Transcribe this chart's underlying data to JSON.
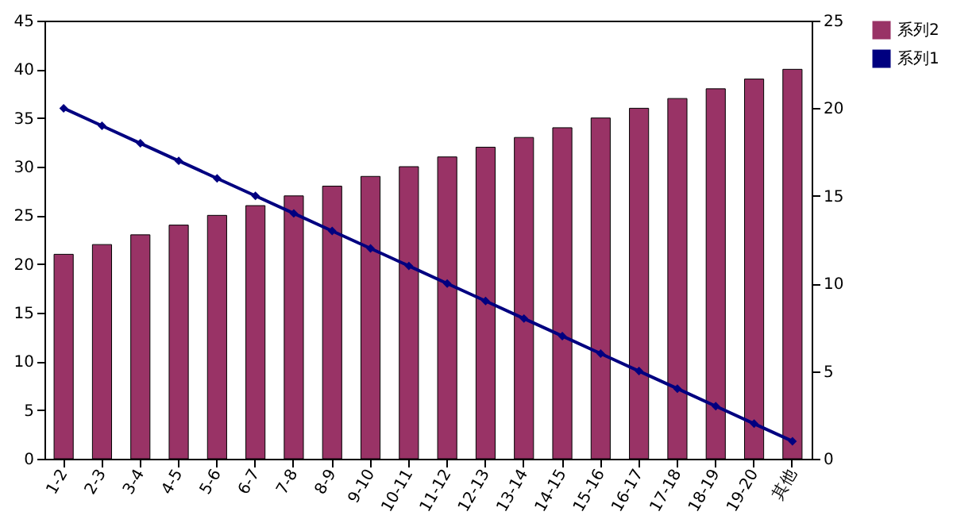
{
  "chart_data": {
    "type": "bar",
    "categories": [
      "1-2",
      "2-3",
      "3-4",
      "4-5",
      "5-6",
      "6-7",
      "7-8",
      "8-9",
      "9-10",
      "10-11",
      "11-12",
      "12-13",
      "13-14",
      "14-15",
      "15-16",
      "16-17",
      "17-18",
      "18-19",
      "19-20",
      "其他"
    ],
    "series": [
      {
        "name": "系列2",
        "color": "#993366",
        "values": [
          21,
          22,
          23,
          24,
          25,
          26,
          27,
          28,
          29,
          30,
          31,
          32,
          33,
          34,
          35,
          36,
          37,
          38,
          39,
          40
        ]
      },
      {
        "name": "系列1",
        "type": "line",
        "axis": "y2",
        "color": "#000080",
        "marker": "diamond",
        "values": [
          20,
          19,
          18,
          17,
          16,
          15,
          14,
          13,
          12,
          11,
          10,
          9,
          8,
          7,
          6,
          5,
          4,
          3,
          2,
          1
        ]
      }
    ],
    "ylim": [
      0,
      45
    ],
    "yticks": [
      0,
      5,
      10,
      15,
      20,
      25,
      30,
      35,
      40,
      45
    ],
    "y2lim": [
      0,
      25
    ],
    "y2ticks": [
      0,
      5,
      10,
      15,
      20,
      25
    ],
    "grid": false,
    "legend": "right"
  }
}
